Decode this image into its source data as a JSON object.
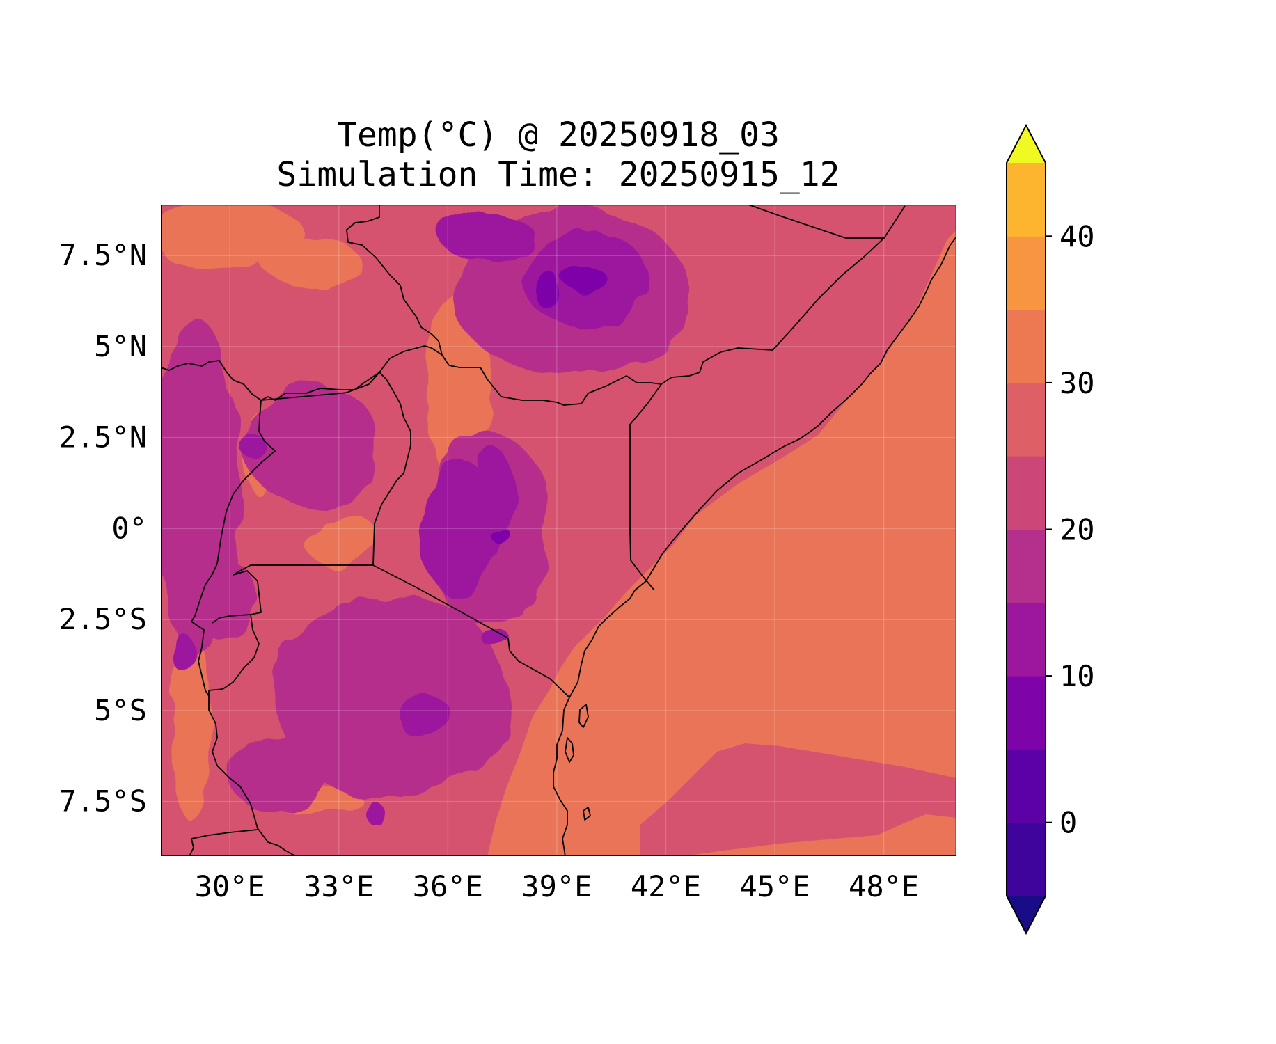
{
  "title": {
    "line1": "Temp(°C) @ 20250918_03",
    "line2": "Simulation Time: 20250915_12"
  },
  "map": {
    "type": "filled-contour",
    "variable": "Temp(°C)",
    "projection": "PlateCarree",
    "extent": {
      "lon": [
        28.1,
        50.0
      ],
      "lat": [
        -9.0,
        8.9
      ]
    },
    "x_ticks": [
      {
        "value": 30,
        "label": "30°E"
      },
      {
        "value": 33,
        "label": "33°E"
      },
      {
        "value": 36,
        "label": "36°E"
      },
      {
        "value": 39,
        "label": "39°E"
      },
      {
        "value": 42,
        "label": "42°E"
      },
      {
        "value": 45,
        "label": "45°E"
      },
      {
        "value": 48,
        "label": "48°E"
      }
    ],
    "y_ticks": [
      {
        "value": 7.5,
        "label": "7.5°N"
      },
      {
        "value": 5,
        "label": "5°N"
      },
      {
        "value": 2.5,
        "label": "2.5°N"
      },
      {
        "value": 0,
        "label": "0°"
      },
      {
        "value": -2.5,
        "label": "2.5°S"
      },
      {
        "value": -5,
        "label": "5°S"
      },
      {
        "value": -7.5,
        "label": "7.5°S"
      }
    ],
    "gridlines": true,
    "features": [
      "country borders",
      "coastline",
      "lake shorelines"
    ]
  },
  "colorbar": {
    "cmap": "plasma",
    "extend": "both",
    "levels": [
      -5,
      0,
      5,
      10,
      15,
      20,
      25,
      30,
      35,
      40,
      45
    ],
    "colors": [
      "#1a0c86",
      "#3e049c",
      "#5c01a6",
      "#7e03a8",
      "#9c179e",
      "#b52f8c",
      "#cc4778",
      "#de5f65",
      "#ed7953",
      "#f89540",
      "#fdb42f",
      "#f0f921"
    ],
    "tick_labels": [
      {
        "value": 0,
        "label": "0"
      },
      {
        "value": 10,
        "label": "10"
      },
      {
        "value": 20,
        "label": "20"
      },
      {
        "value": 30,
        "label": "30"
      },
      {
        "value": 40,
        "label": "40"
      }
    ]
  }
}
